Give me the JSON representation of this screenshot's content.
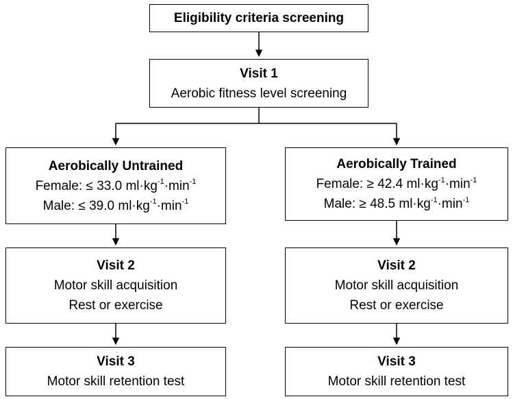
{
  "boxes": {
    "eligibility": {
      "title": "Eligibility criteria screening"
    },
    "visit1": {
      "title": "Visit 1",
      "line1": "Aerobic fitness level screening"
    },
    "untrained": {
      "title": "Aerobically Untrained",
      "female": {
        "label": "Female: ≤ 33.0 ml·kg",
        "exp1": "-1",
        "mid": "·min",
        "exp2": "-1"
      },
      "male": {
        "label": "Male: ≤ 39.0 ml·kg",
        "exp1": "-1",
        "mid": "·min",
        "exp2": "-1"
      }
    },
    "trained": {
      "title": "Aerobically Trained",
      "female": {
        "label": "Female: ≥ 42.4 ml·kg",
        "exp1": "-1",
        "mid": "·min",
        "exp2": "-1"
      },
      "male": {
        "label": "Male: ≥ 48.5 ml·kg",
        "exp1": "-1",
        "mid": "·min",
        "exp2": "-1"
      }
    },
    "left_visit2": {
      "title": "Visit 2",
      "line1": "Motor skill acquisition",
      "line2": "Rest or exercise"
    },
    "right_visit2": {
      "title": "Visit 2",
      "line1": "Motor skill acquisition",
      "line2": "Rest or exercise"
    },
    "left_visit3": {
      "title": "Visit 3",
      "line1": "Motor skill retention test"
    },
    "right_visit3": {
      "title": "Visit 3",
      "line1": "Motor skill retention test"
    }
  }
}
